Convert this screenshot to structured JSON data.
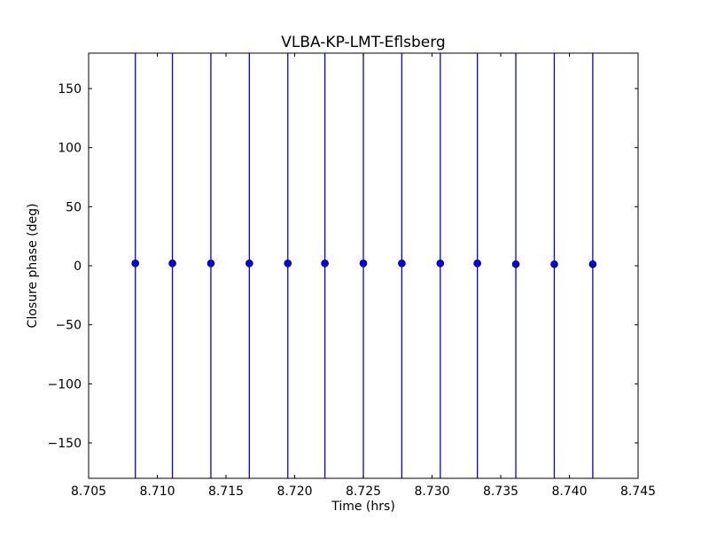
{
  "chart_data": {
    "type": "scatter",
    "title": "VLBA-KP-LMT-Eflsberg",
    "xlabel": "Time (hrs)",
    "ylabel": "Closure phase (deg)",
    "xlim": [
      8.705,
      8.745
    ],
    "ylim": [
      -180,
      180
    ],
    "xticks": [
      "8.705",
      "8.710",
      "8.715",
      "8.720",
      "8.725",
      "8.730",
      "8.735",
      "8.740",
      "8.745"
    ],
    "xtick_values": [
      8.705,
      8.71,
      8.715,
      8.72,
      8.725,
      8.73,
      8.735,
      8.74,
      8.745
    ],
    "yticks": [
      "−150",
      "−100",
      "−50",
      "0",
      "50",
      "100",
      "150"
    ],
    "ytick_values": [
      -150,
      -100,
      -50,
      0,
      50,
      100,
      150
    ],
    "grid": false,
    "marker_color": "#0000ff",
    "errorbar_color": "#0000ff",
    "x": [
      8.7084,
      8.7111,
      8.7139,
      8.7167,
      8.7195,
      8.7222,
      8.725,
      8.7278,
      8.7306,
      8.7333,
      8.7361,
      8.7389,
      8.7417
    ],
    "y": [
      2,
      2,
      2,
      2,
      2,
      2,
      2,
      2,
      2,
      2,
      1.3,
      1.3,
      1.3
    ],
    "yerr_note_visible": false,
    "yerr": [
      180,
      180,
      180,
      180,
      180,
      180,
      180,
      180,
      180,
      180,
      180,
      180,
      180
    ]
  }
}
